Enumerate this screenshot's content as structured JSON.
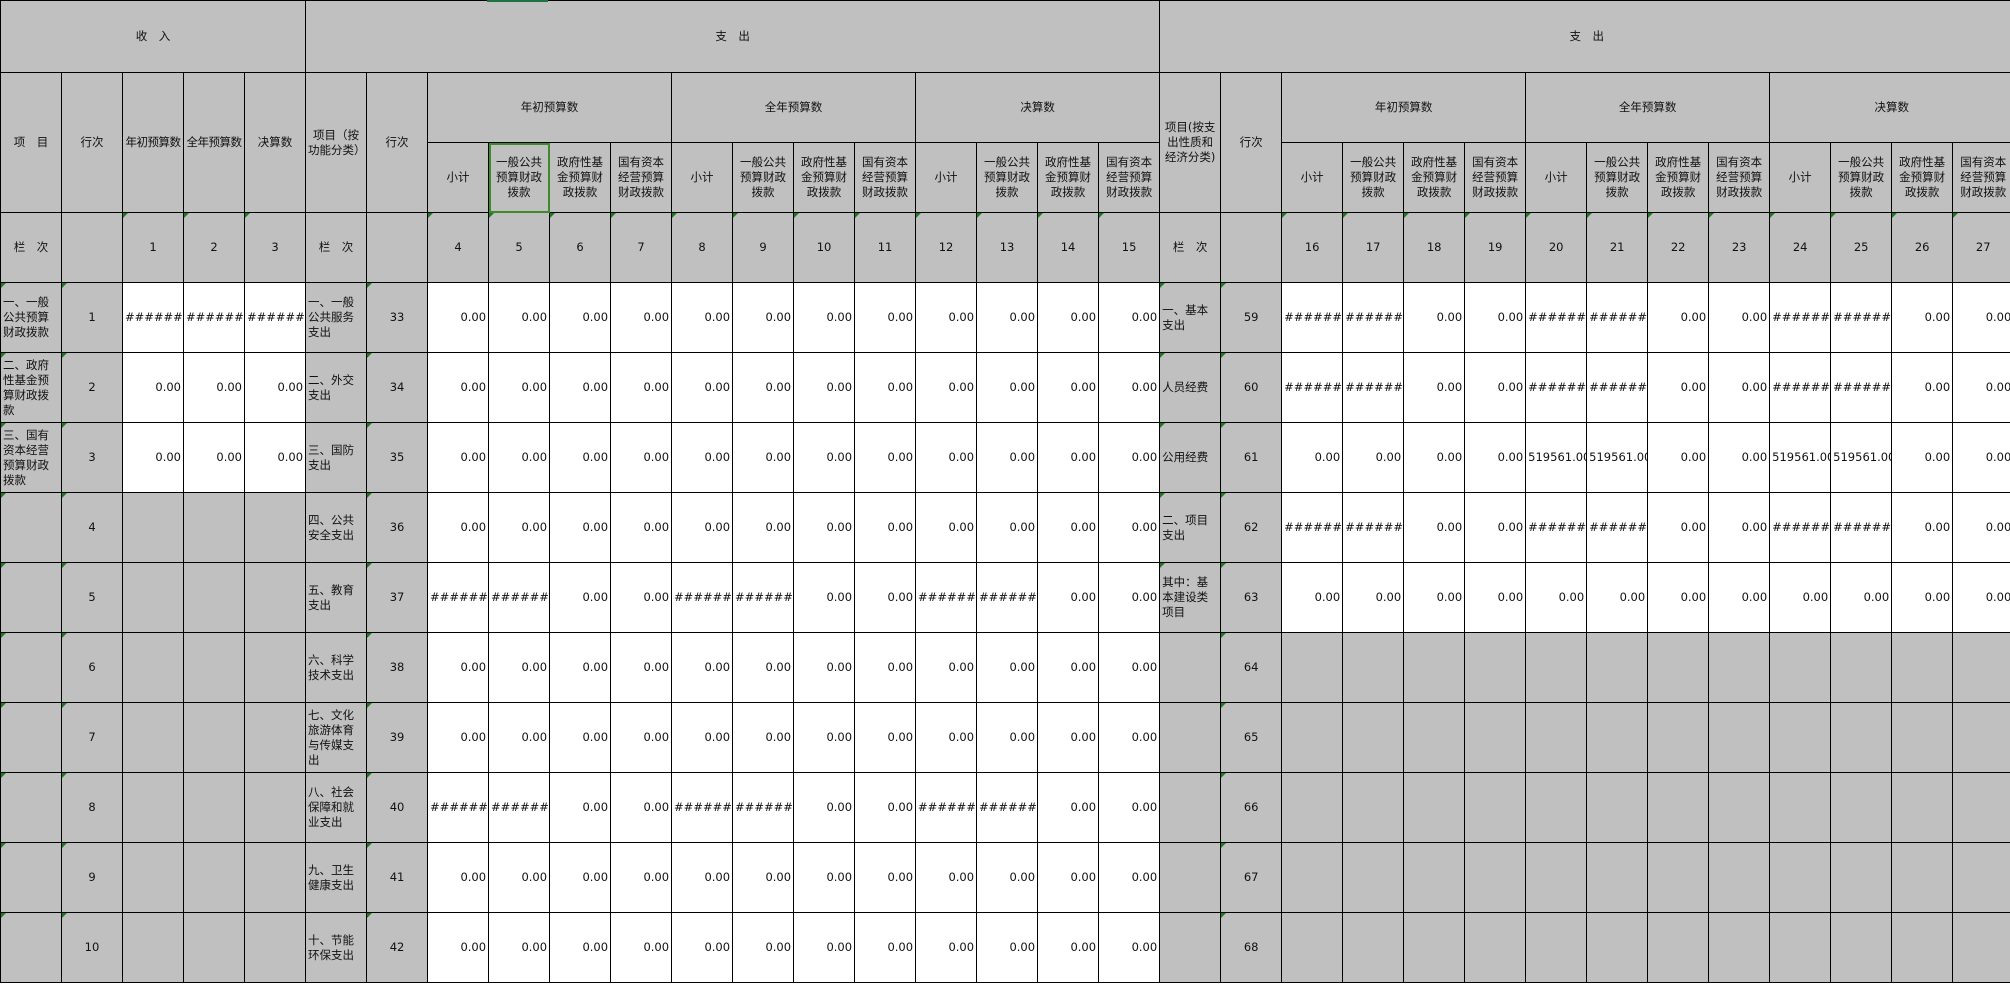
{
  "header": {
    "income": "收　入",
    "expense_function": "支　出",
    "expense_economic": "支　出",
    "item": "项　目",
    "line": "行次",
    "initial_budget": "年初预算数",
    "full_year_budget": "全年预算数",
    "final_accounts": "决算数",
    "item_by_function": "项目（按功能分类）",
    "item_by_economic": "项目(按支出性质和经济分类)",
    "sub_columns": [
      "小计",
      "一般公共预算财政拨款",
      "政府性基金预算财政拨款",
      "国有资本经营预算财政拨款"
    ],
    "column_label": "栏　次",
    "col_nums_left": [
      "1",
      "2",
      "3"
    ],
    "col_nums_mid": [
      "4",
      "5",
      "6",
      "7",
      "8",
      "9",
      "10",
      "11",
      "12",
      "13",
      "14",
      "15"
    ],
    "col_nums_right": [
      "16",
      "17",
      "18",
      "19",
      "20",
      "21",
      "22",
      "23",
      "24",
      "25",
      "26",
      "27"
    ]
  },
  "selected_cell": {
    "row": "sub_header",
    "column": "5"
  },
  "colors": {
    "label_fill": "#c0c0c0",
    "selection": "#3f8a2c",
    "marker": "#1e7a1e"
  },
  "rows": [
    {
      "left_item": "一、一般公共预算财政拨款",
      "left_line": "1",
      "left_values": [
        "########",
        "########",
        "########"
      ],
      "mid_item": "一、一般公共服务支出",
      "mid_line": "33",
      "mid_values": [
        "0.00",
        "0.00",
        "0.00",
        "0.00",
        "0.00",
        "0.00",
        "0.00",
        "0.00",
        "0.00",
        "0.00",
        "0.00",
        "0.00"
      ],
      "right_item": "一、基本支出",
      "right_line": "59",
      "right_values": [
        "########",
        "########",
        "0.00",
        "0.00",
        "########",
        "########",
        "0.00",
        "0.00",
        "########",
        "########",
        "0.00",
        "0.00"
      ]
    },
    {
      "left_item": "二、政府性基金预算财政拨款",
      "left_line": "2",
      "left_values": [
        "0.00",
        "0.00",
        "0.00"
      ],
      "mid_item": "二、外交支出",
      "mid_line": "34",
      "mid_values": [
        "0.00",
        "0.00",
        "0.00",
        "0.00",
        "0.00",
        "0.00",
        "0.00",
        "0.00",
        "0.00",
        "0.00",
        "0.00",
        "0.00"
      ],
      "right_item": "人员经费",
      "right_line": "60",
      "right_values": [
        "########",
        "########",
        "0.00",
        "0.00",
        "########",
        "########",
        "0.00",
        "0.00",
        "########",
        "########",
        "0.00",
        "0.00"
      ]
    },
    {
      "left_item": "三、国有资本经营预算财政拨款",
      "left_line": "3",
      "left_values": [
        "0.00",
        "0.00",
        "0.00"
      ],
      "mid_item": "三、国防支出",
      "mid_line": "35",
      "mid_values": [
        "0.00",
        "0.00",
        "0.00",
        "0.00",
        "0.00",
        "0.00",
        "0.00",
        "0.00",
        "0.00",
        "0.00",
        "0.00",
        "0.00"
      ],
      "right_item": "公用经费",
      "right_line": "61",
      "right_values": [
        "0.00",
        "0.00",
        "0.00",
        "0.00",
        "519561.00",
        "519561.00",
        "0.00",
        "0.00",
        "519561.00",
        "519561.00",
        "0.00",
        "0.00"
      ]
    },
    {
      "left_item": "",
      "left_line": "4",
      "left_values": null,
      "mid_item": "四、公共安全支出",
      "mid_line": "36",
      "mid_values": [
        "0.00",
        "0.00",
        "0.00",
        "0.00",
        "0.00",
        "0.00",
        "0.00",
        "0.00",
        "0.00",
        "0.00",
        "0.00",
        "0.00"
      ],
      "right_item": "二、项目支出",
      "right_line": "62",
      "right_values": [
        "########",
        "########",
        "0.00",
        "0.00",
        "########",
        "########",
        "0.00",
        "0.00",
        "########",
        "########",
        "0.00",
        "0.00"
      ]
    },
    {
      "left_item": "",
      "left_line": "5",
      "left_values": null,
      "mid_item": "五、教育支出",
      "mid_line": "37",
      "mid_values": [
        "########",
        "########",
        "0.00",
        "0.00",
        "########",
        "########",
        "0.00",
        "0.00",
        "########",
        "########",
        "0.00",
        "0.00"
      ],
      "right_item": "其中：基本建设类项目",
      "right_line": "63",
      "right_values": [
        "0.00",
        "0.00",
        "0.00",
        "0.00",
        "0.00",
        "0.00",
        "0.00",
        "0.00",
        "0.00",
        "0.00",
        "0.00",
        "0.00"
      ]
    },
    {
      "left_item": "",
      "left_line": "6",
      "left_values": null,
      "mid_item": "六、科学技术支出",
      "mid_line": "38",
      "mid_values": [
        "0.00",
        "0.00",
        "0.00",
        "0.00",
        "0.00",
        "0.00",
        "0.00",
        "0.00",
        "0.00",
        "0.00",
        "0.00",
        "0.00"
      ],
      "right_item": "",
      "right_line": "64",
      "right_values": null
    },
    {
      "left_item": "",
      "left_line": "7",
      "left_values": null,
      "mid_item": "七、文化旅游体育与传媒支出",
      "mid_line": "39",
      "mid_values": [
        "0.00",
        "0.00",
        "0.00",
        "0.00",
        "0.00",
        "0.00",
        "0.00",
        "0.00",
        "0.00",
        "0.00",
        "0.00",
        "0.00"
      ],
      "right_item": "",
      "right_line": "65",
      "right_values": null
    },
    {
      "left_item": "",
      "left_line": "8",
      "left_values": null,
      "mid_item": "八、社会保障和就业支出",
      "mid_line": "40",
      "mid_values": [
        "########",
        "########",
        "0.00",
        "0.00",
        "########",
        "########",
        "0.00",
        "0.00",
        "########",
        "########",
        "0.00",
        "0.00"
      ],
      "right_item": "",
      "right_line": "66",
      "right_values": null
    },
    {
      "left_item": "",
      "left_line": "9",
      "left_values": null,
      "mid_item": "九、卫生健康支出",
      "mid_line": "41",
      "mid_values": [
        "0.00",
        "0.00",
        "0.00",
        "0.00",
        "0.00",
        "0.00",
        "0.00",
        "0.00",
        "0.00",
        "0.00",
        "0.00",
        "0.00"
      ],
      "right_item": "",
      "right_line": "67",
      "right_values": null
    },
    {
      "left_item": "",
      "left_line": "10",
      "left_values": null,
      "mid_item": "十、节能环保支出",
      "mid_line": "42",
      "mid_values": [
        "0.00",
        "0.00",
        "0.00",
        "0.00",
        "0.00",
        "0.00",
        "0.00",
        "0.00",
        "0.00",
        "0.00",
        "0.00",
        "0.00"
      ],
      "right_item": "",
      "right_line": "68",
      "right_values": null
    }
  ]
}
